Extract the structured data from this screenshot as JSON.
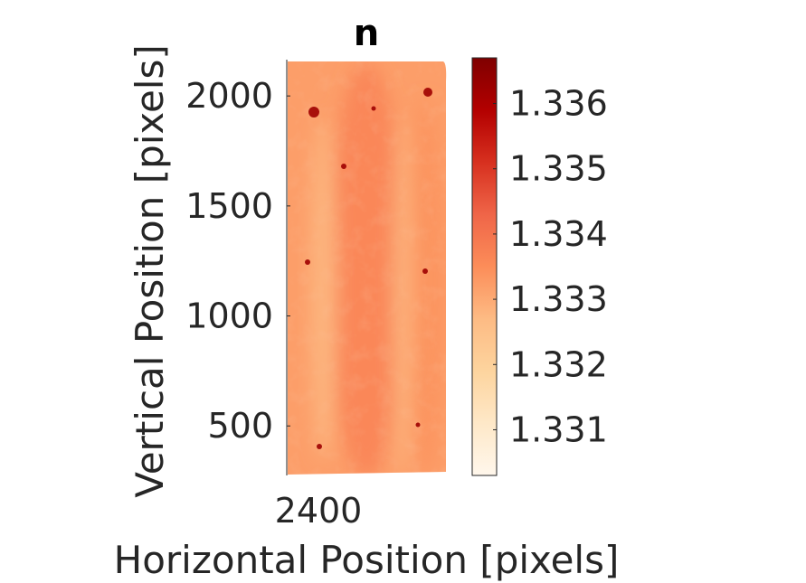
{
  "chart_data": {
    "type": "heatmap",
    "title": "n",
    "xlabel": "Horizontal Position [pixels]",
    "ylabel": "Vertical Position [pixels]",
    "x_ticks": [
      2400
    ],
    "y_ticks": [
      500,
      1000,
      1500,
      2000
    ],
    "ylim": [
      275,
      2165
    ],
    "colorbar": {
      "ticks": [
        "1.331",
        "1.332",
        "1.333",
        "1.334",
        "1.335",
        "1.336"
      ],
      "tick_values": [
        1.331,
        1.332,
        1.333,
        1.334,
        1.335,
        1.336
      ],
      "range": [
        1.3303,
        1.3367
      ],
      "colormap": "OrRd",
      "location": "right"
    },
    "colormap_stops": [
      "#fff7ec",
      "#fee8c8",
      "#fdd49e",
      "#fdbb84",
      "#fc8d59",
      "#ef6548",
      "#d7301f",
      "#b30000",
      "#7f0000"
    ],
    "field_summary": {
      "background_value": 1.3332,
      "center_band_value": 1.3337,
      "right_band_value": 1.3334,
      "light_streak_value": 1.3327,
      "hot_spots_value": 1.3362
    }
  }
}
